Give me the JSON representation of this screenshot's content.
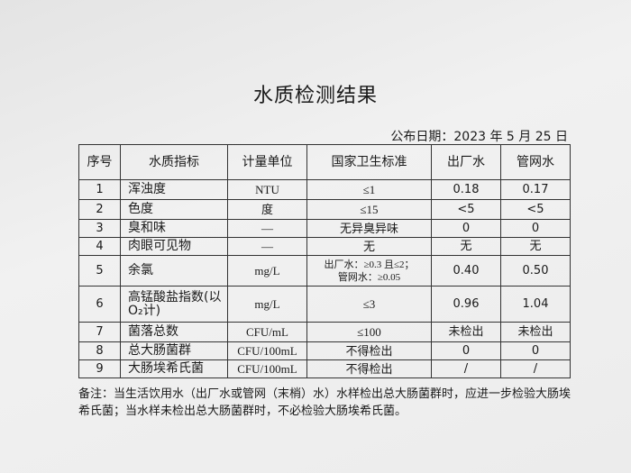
{
  "title": "水质检测结果",
  "publish_date": "公布日期：2023 年 5 月 25 日",
  "table": {
    "headers": [
      "序号",
      "水质指标",
      "计量单位",
      "国家卫生标准",
      "出厂水",
      "管网水"
    ],
    "rows": [
      {
        "no": "1",
        "name": "浑浊度",
        "unit": "NTU",
        "standard": "≤1",
        "plant": "0.18",
        "network": "0.17"
      },
      {
        "no": "2",
        "name": "色度",
        "unit": "度",
        "standard": "≤15",
        "plant": "<5",
        "network": "<5"
      },
      {
        "no": "3",
        "name": "臭和味",
        "unit": "—",
        "standard": "无异臭异味",
        "plant": "0",
        "network": "0"
      },
      {
        "no": "4",
        "name": "肉眼可见物",
        "unit": "—",
        "standard": "无",
        "plant": "无",
        "network": "无"
      },
      {
        "no": "5",
        "name": "余氯",
        "unit": "mg/L",
        "standard": "出厂水：≥0.3 且≤2；",
        "standard2": "管网水：≥0.05",
        "plant": "0.40",
        "network": "0.50"
      },
      {
        "no": "6",
        "name": "高锰酸盐指数(以",
        "name2": "O₂计)",
        "unit": "mg/L",
        "standard": "≤3",
        "plant": "0.96",
        "network": "1.04"
      },
      {
        "no": "7",
        "name": "菌落总数",
        "unit": "CFU/mL",
        "standard": "≤100",
        "plant": "未检出",
        "network": "未检出"
      },
      {
        "no": "8",
        "name": "总大肠菌群",
        "unit": "CFU/100mL",
        "standard": "不得检出",
        "plant": "0",
        "network": "0"
      },
      {
        "no": "9",
        "name": "大肠埃希氏菌",
        "unit": "CFU/100mL",
        "standard": "不得检出",
        "plant": "/",
        "network": "/"
      }
    ]
  },
  "notes": "备注：当生活饮用水（出厂水或管网（末梢）水）水样检出总大肠菌群时，应进一步检验大肠埃希氏菌；当水样未检出总大肠菌群时，不必检验大肠埃希氏菌。"
}
